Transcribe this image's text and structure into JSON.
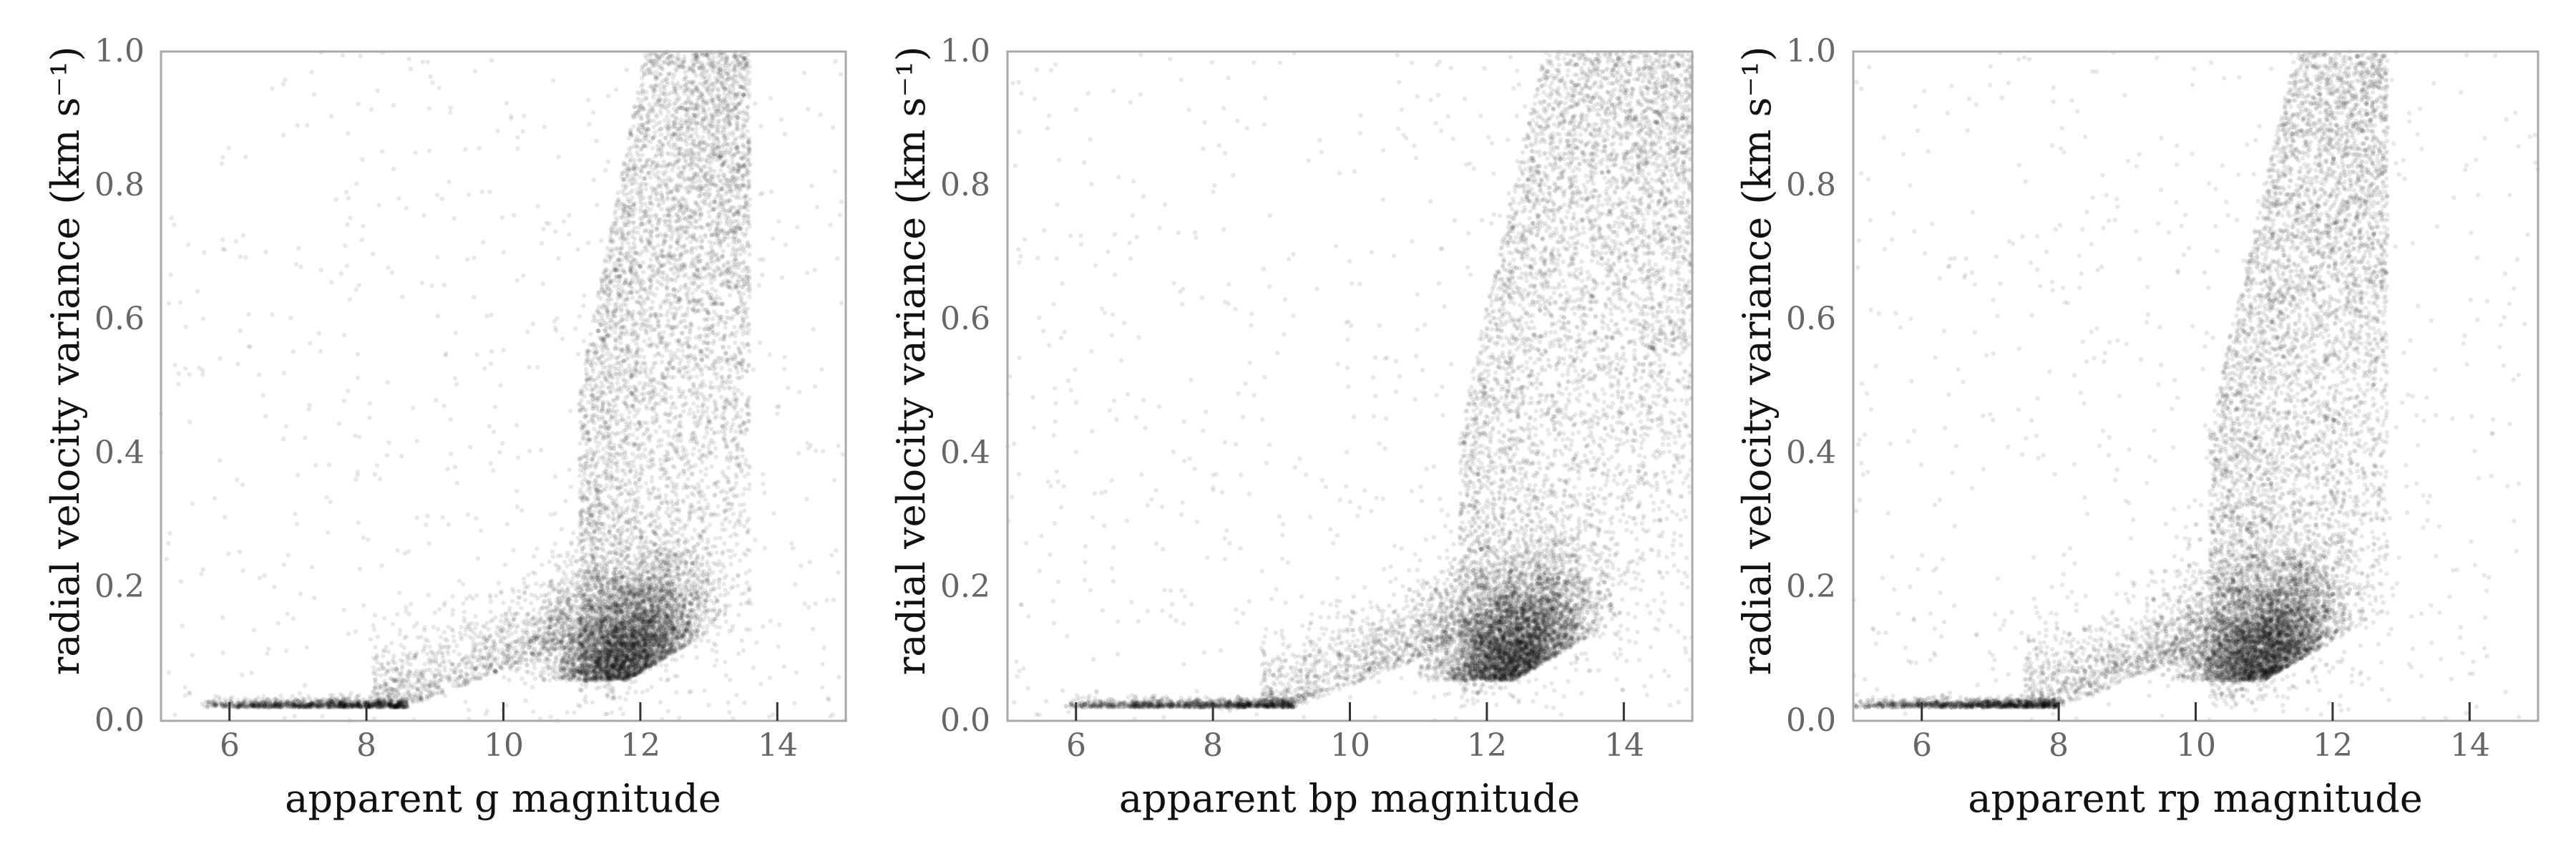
{
  "chart_data": [
    {
      "type": "scatter",
      "xlabel": "apparent g magnitude",
      "ylabel": "radial velocity variance (km s⁻¹)",
      "xlim": [
        5,
        15
      ],
      "ylim": [
        0,
        1
      ],
      "xticks": [
        "6",
        "8",
        "10",
        "12",
        "14"
      ],
      "yticks": [
        "0.0",
        "0.2",
        "0.4",
        "0.6",
        "0.8",
        "1.0"
      ],
      "point_color": "#000000",
      "grid": false,
      "density_model": {
        "floor_value": 0.02,
        "floor_x_range": [
          5.6,
          8.6
        ],
        "knee_x": 10.5,
        "saturation_x": 12.2,
        "peak_x": 11.8,
        "dense_x_range": [
          10.5,
          13.6
        ]
      }
    },
    {
      "type": "scatter",
      "xlabel": "apparent bp magnitude",
      "ylabel": "radial velocity variance (km s⁻¹)",
      "xlim": [
        5,
        15
      ],
      "ylim": [
        0,
        1
      ],
      "xticks": [
        "6",
        "8",
        "10",
        "12",
        "14"
      ],
      "yticks": [
        "0.0",
        "0.2",
        "0.4",
        "0.6",
        "0.8",
        "1.0"
      ],
      "point_color": "#000000",
      "grid": false,
      "density_model": {
        "floor_value": 0.02,
        "floor_x_range": [
          5.8,
          9.2
        ],
        "knee_x": 11.0,
        "saturation_x": 13.0,
        "peak_x": 12.4,
        "dense_x_range": [
          11.0,
          15.0
        ]
      }
    },
    {
      "type": "scatter",
      "xlabel": "apparent rp magnitude",
      "ylabel": "radial velocity variance (km s⁻¹)",
      "xlim": [
        5,
        15
      ],
      "ylim": [
        0,
        1
      ],
      "xticks": [
        "6",
        "8",
        "10",
        "12",
        "14"
      ],
      "yticks": [
        "0.0",
        "0.2",
        "0.4",
        "0.6",
        "0.8",
        "1.0"
      ],
      "point_color": "#000000",
      "grid": false,
      "density_model": {
        "floor_value": 0.02,
        "floor_x_range": [
          5.0,
          8.0
        ],
        "knee_x": 9.6,
        "saturation_x": 11.6,
        "peak_x": 11.0,
        "dense_x_range": [
          9.6,
          12.8
        ]
      }
    }
  ]
}
